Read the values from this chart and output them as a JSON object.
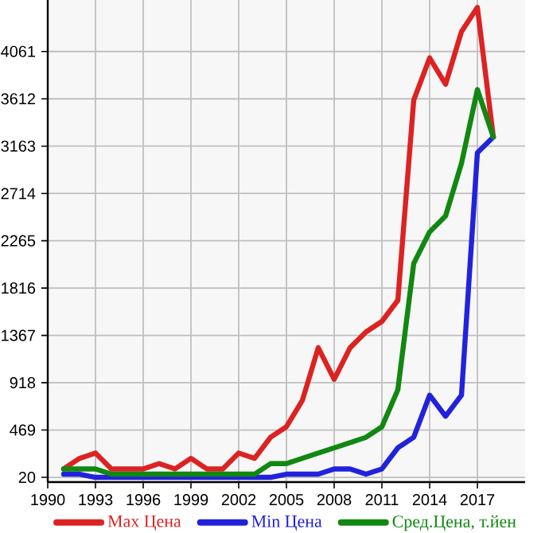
{
  "chart_data": {
    "type": "line",
    "x": [
      1991,
      1992,
      1993,
      1994,
      1995,
      1996,
      1997,
      1998,
      1999,
      2000,
      2001,
      2002,
      2003,
      2004,
      2005,
      2006,
      2007,
      2008,
      2009,
      2010,
      2011,
      2012,
      2013,
      2014,
      2015,
      2016,
      2017,
      2018
    ],
    "series": [
      {
        "name": "Max Цена",
        "color": "#dd2222",
        "values": [
          100,
          200,
          250,
          100,
          100,
          100,
          150,
          100,
          200,
          100,
          100,
          250,
          200,
          400,
          500,
          750,
          1250,
          950,
          1250,
          1400,
          1500,
          1700,
          3600,
          4000,
          3750,
          4250,
          4480,
          3250
        ]
      },
      {
        "name": "Min Цена",
        "color": "#2222dd",
        "values": [
          50,
          50,
          20,
          20,
          20,
          20,
          20,
          20,
          20,
          20,
          20,
          20,
          20,
          20,
          50,
          50,
          50,
          100,
          100,
          50,
          100,
          300,
          400,
          800,
          600,
          800,
          3100,
          3250
        ]
      },
      {
        "name": "Сред.Цена, т.йен",
        "color": "#118811",
        "values": [
          100,
          100,
          100,
          50,
          50,
          50,
          50,
          50,
          50,
          50,
          50,
          50,
          50,
          150,
          150,
          200,
          250,
          300,
          350,
          400,
          500,
          850,
          2050,
          2350,
          2500,
          3000,
          3700,
          3250
        ]
      }
    ],
    "xlim": [
      1990,
      2020
    ],
    "ylim": [
      -25,
      4550
    ],
    "xticks": [
      1990,
      1993,
      1996,
      1999,
      2002,
      2005,
      2008,
      2011,
      2014,
      2017
    ],
    "yticks": [
      20,
      469,
      918,
      1367,
      1816,
      2265,
      2714,
      3163,
      3612,
      4061
    ],
    "grid": true,
    "legend": "bottom",
    "marker": "none",
    "line_style": "solid"
  }
}
